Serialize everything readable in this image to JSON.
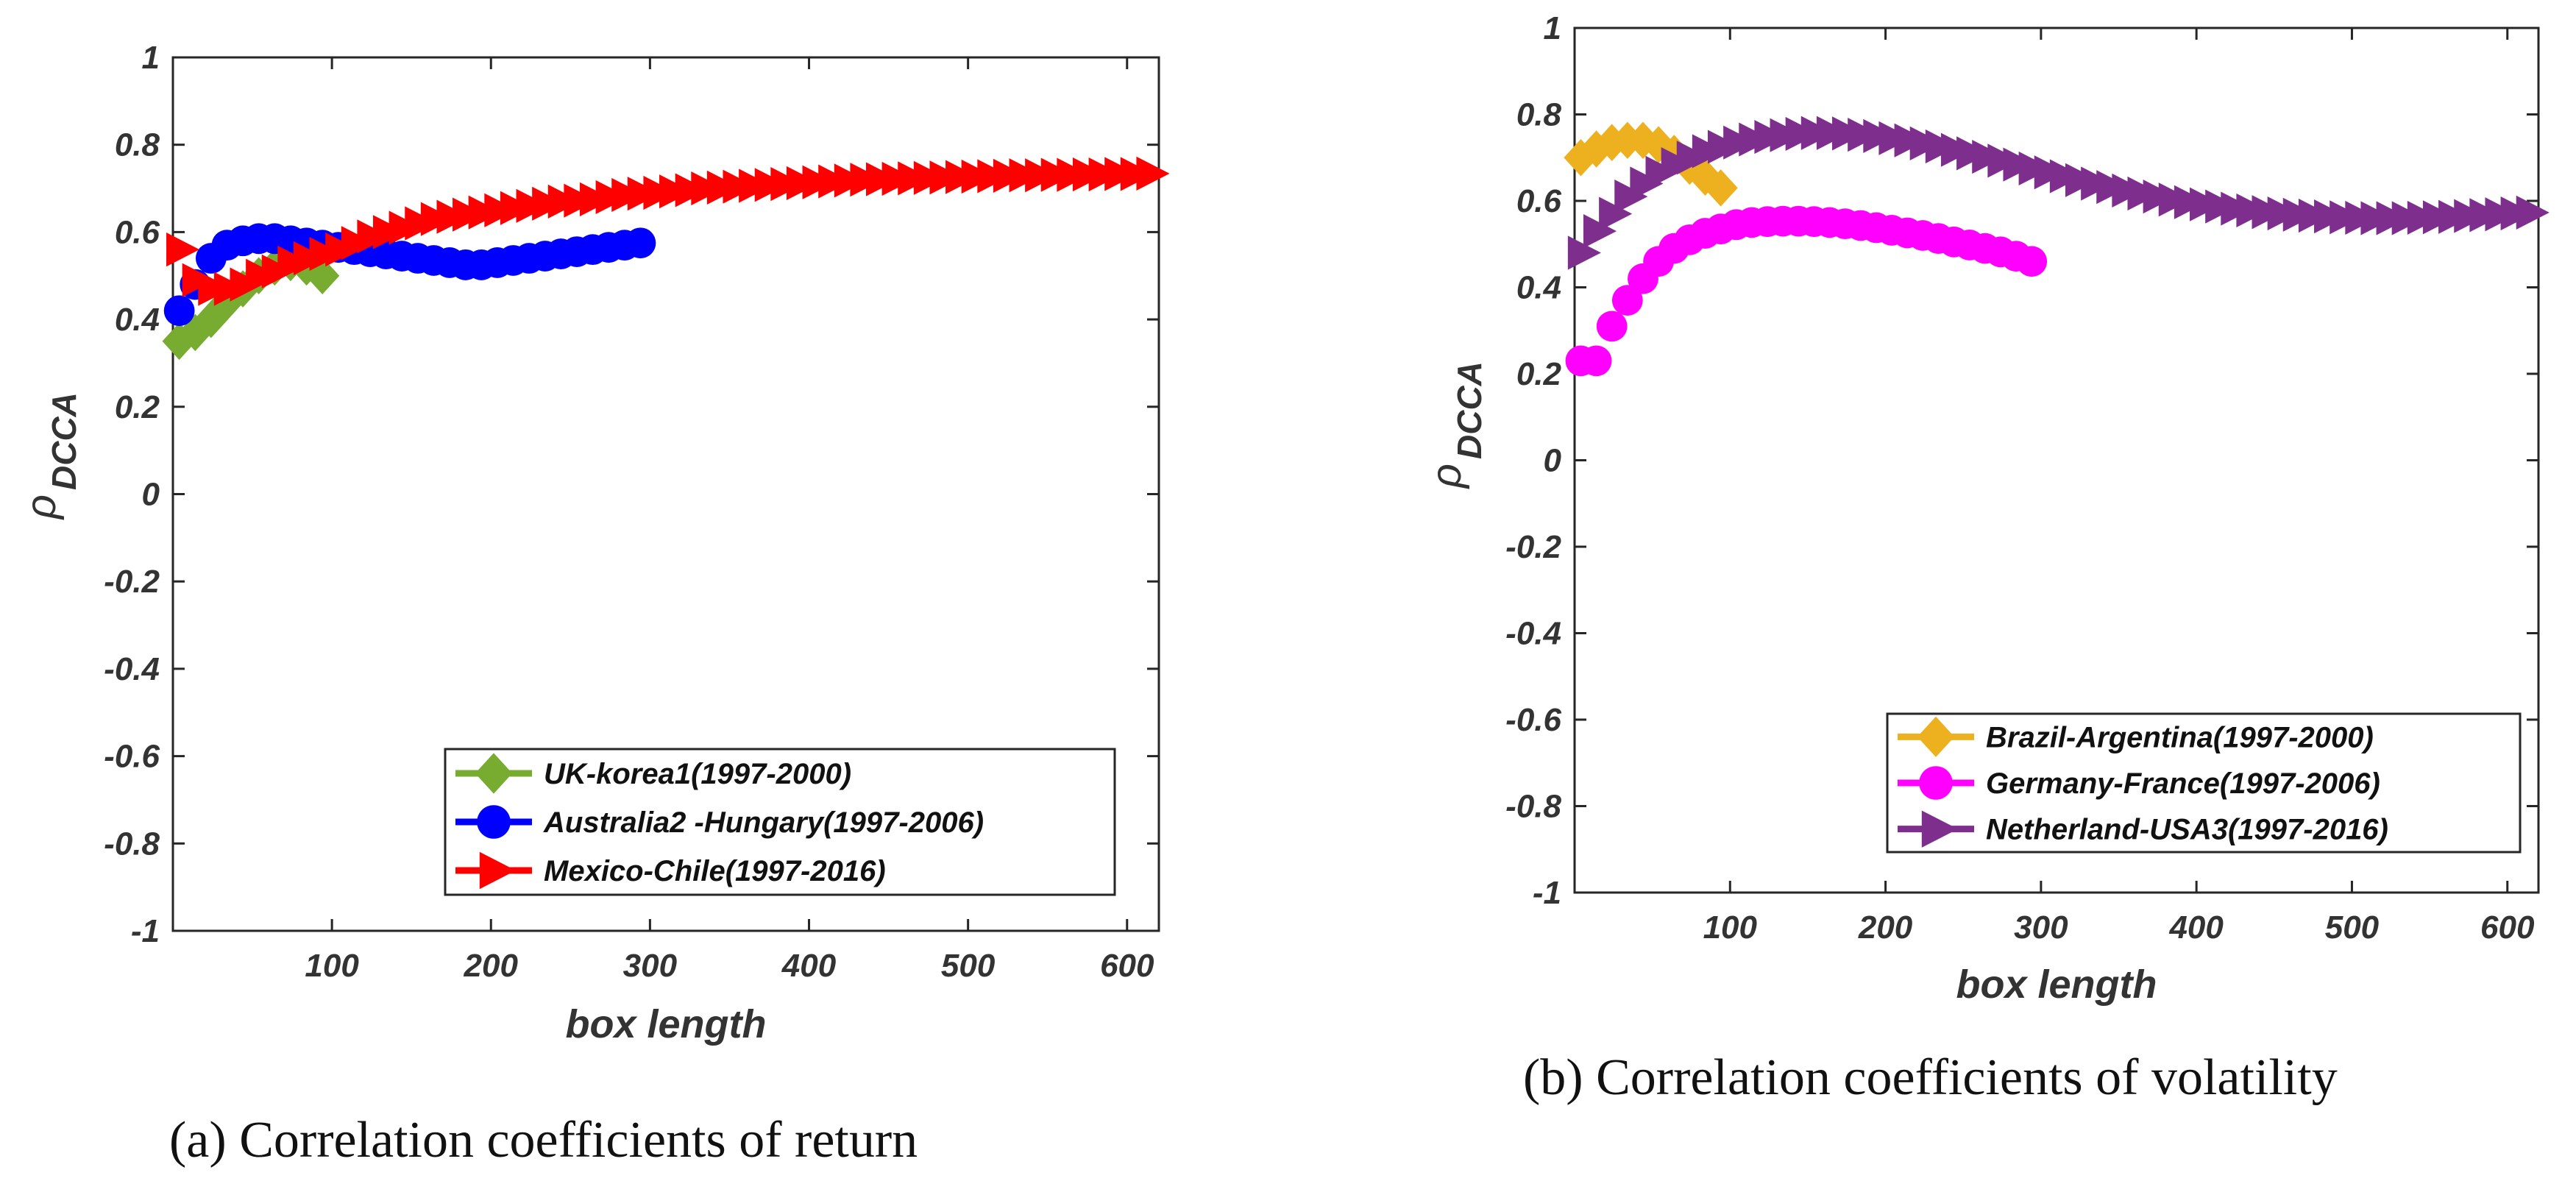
{
  "figures": [
    {
      "caption": "(a) Correlation coefficients of return"
    },
    {
      "caption": "(b) Correlation coefficients of volatility"
    }
  ],
  "chart_data": [
    {
      "type": "scatter",
      "title": "",
      "xlabel": "box length",
      "ylabel": "ρ",
      "ylabel_sub": "DCCA",
      "xlim": [
        0,
        620
      ],
      "ylim": [
        -1,
        1
      ],
      "xticks": [
        "100",
        "200",
        "300",
        "400",
        "500",
        "600"
      ],
      "yticks": [
        "1",
        "0.8",
        "0.6",
        "0.4",
        "0.2",
        "0",
        "-0.2",
        "-0.4",
        "-0.6",
        "-0.8",
        "-1"
      ],
      "grid": false,
      "legend_position": "bottom-right",
      "series": [
        {
          "name": "UK-korea1(1997-2000)",
          "marker": "diamond",
          "color": "#77AC30",
          "x": [
            4,
            14,
            24,
            34,
            44,
            54,
            64,
            74,
            84,
            94
          ],
          "y": [
            0.35,
            0.37,
            0.4,
            0.44,
            0.47,
            0.5,
            0.52,
            0.53,
            0.52,
            0.5
          ]
        },
        {
          "name": "Australia2 -Hungary(1997-2006)",
          "marker": "circle",
          "color": "#0000FF",
          "x": [
            4,
            14,
            24,
            34,
            44,
            54,
            64,
            74,
            84,
            94,
            104,
            114,
            124,
            134,
            144,
            154,
            164,
            174,
            184,
            194,
            204,
            214,
            224,
            234,
            244,
            254,
            264,
            274,
            284,
            294
          ],
          "y": [
            0.42,
            0.48,
            0.54,
            0.57,
            0.58,
            0.585,
            0.585,
            0.58,
            0.575,
            0.57,
            0.565,
            0.56,
            0.555,
            0.55,
            0.545,
            0.54,
            0.535,
            0.53,
            0.525,
            0.525,
            0.53,
            0.535,
            0.54,
            0.545,
            0.55,
            0.555,
            0.56,
            0.565,
            0.57,
            0.575
          ]
        },
        {
          "name": "Mexico-Chile(1997-2016)",
          "marker": "triangle-right",
          "color": "#FF0000",
          "x": [
            4,
            14,
            24,
            34,
            44,
            54,
            64,
            74,
            84,
            94,
            104,
            114,
            124,
            134,
            144,
            154,
            164,
            174,
            184,
            194,
            204,
            214,
            224,
            234,
            244,
            254,
            264,
            274,
            284,
            294,
            304,
            314,
            324,
            334,
            344,
            354,
            364,
            374,
            384,
            394,
            404,
            414,
            424,
            434,
            444,
            454,
            464,
            474,
            484,
            494,
            504,
            514,
            524,
            534,
            544,
            554,
            564,
            574,
            584,
            594,
            604,
            614
          ],
          "y": [
            0.56,
            0.49,
            0.47,
            0.47,
            0.48,
            0.5,
            0.51,
            0.53,
            0.54,
            0.55,
            0.56,
            0.575,
            0.59,
            0.6,
            0.61,
            0.62,
            0.63,
            0.635,
            0.64,
            0.645,
            0.65,
            0.655,
            0.66,
            0.665,
            0.67,
            0.672,
            0.675,
            0.68,
            0.685,
            0.688,
            0.69,
            0.693,
            0.696,
            0.7,
            0.702,
            0.704,
            0.706,
            0.708,
            0.71,
            0.712,
            0.714,
            0.716,
            0.718,
            0.72,
            0.721,
            0.722,
            0.723,
            0.724,
            0.725,
            0.726,
            0.727,
            0.728,
            0.729,
            0.73,
            0.73,
            0.731,
            0.731,
            0.732,
            0.732,
            0.733,
            0.733,
            0.734
          ]
        }
      ]
    },
    {
      "type": "scatter",
      "title": "",
      "xlabel": "box length",
      "ylabel": "ρ",
      "ylabel_sub": "DCCA",
      "xlim": [
        0,
        620
      ],
      "ylim": [
        -1,
        1
      ],
      "xticks": [
        "100",
        "200",
        "300",
        "400",
        "500",
        "600"
      ],
      "yticks": [
        "1",
        "0.8",
        "0.6",
        "0.4",
        "0.2",
        "0",
        "-0.2",
        "-0.4",
        "-0.6",
        "-0.8",
        "-1"
      ],
      "grid": false,
      "legend_position": "bottom-right",
      "series": [
        {
          "name": "Brazil-Argentina(1997-2000)",
          "marker": "diamond",
          "color": "#EDB120",
          "x": [
            4,
            14,
            24,
            34,
            44,
            54,
            64,
            74,
            84,
            94
          ],
          "y": [
            0.7,
            0.72,
            0.735,
            0.74,
            0.74,
            0.73,
            0.71,
            0.68,
            0.655,
            0.63
          ]
        },
        {
          "name": "Germany-France(1997-2006)",
          "marker": "circle",
          "color": "#FF00FF",
          "x": [
            4,
            14,
            24,
            34,
            44,
            54,
            64,
            74,
            84,
            94,
            104,
            114,
            124,
            134,
            144,
            154,
            164,
            174,
            184,
            194,
            204,
            214,
            224,
            234,
            244,
            254,
            264,
            274,
            284,
            294
          ],
          "y": [
            0.23,
            0.23,
            0.31,
            0.37,
            0.42,
            0.46,
            0.49,
            0.51,
            0.525,
            0.535,
            0.545,
            0.55,
            0.552,
            0.553,
            0.553,
            0.552,
            0.55,
            0.547,
            0.543,
            0.538,
            0.532,
            0.526,
            0.52,
            0.513,
            0.505,
            0.498,
            0.49,
            0.482,
            0.472,
            0.46
          ]
        },
        {
          "name": "Netherland-USA3(1997-2016)",
          "marker": "triangle-right",
          "color": "#7E2F8E",
          "x": [
            4,
            14,
            24,
            34,
            44,
            54,
            64,
            74,
            84,
            94,
            104,
            114,
            124,
            134,
            144,
            154,
            164,
            174,
            184,
            194,
            204,
            214,
            224,
            234,
            244,
            254,
            264,
            274,
            284,
            294,
            304,
            314,
            324,
            334,
            344,
            354,
            364,
            374,
            384,
            394,
            404,
            414,
            424,
            434,
            444,
            454,
            464,
            474,
            484,
            494,
            504,
            514,
            524,
            534,
            544,
            554,
            564,
            574,
            584,
            594,
            604,
            614
          ],
          "y": [
            0.48,
            0.53,
            0.57,
            0.61,
            0.64,
            0.665,
            0.685,
            0.7,
            0.715,
            0.725,
            0.735,
            0.742,
            0.748,
            0.752,
            0.755,
            0.757,
            0.757,
            0.756,
            0.753,
            0.75,
            0.745,
            0.74,
            0.733,
            0.726,
            0.718,
            0.71,
            0.702,
            0.693,
            0.684,
            0.675,
            0.666,
            0.657,
            0.648,
            0.64,
            0.632,
            0.624,
            0.617,
            0.61,
            0.603,
            0.597,
            0.592,
            0.587,
            0.582,
            0.578,
            0.574,
            0.571,
            0.568,
            0.566,
            0.564,
            0.562,
            0.561,
            0.56,
            0.56,
            0.56,
            0.561,
            0.562,
            0.563,
            0.565,
            0.567,
            0.569,
            0.571,
            0.573
          ]
        }
      ]
    }
  ]
}
